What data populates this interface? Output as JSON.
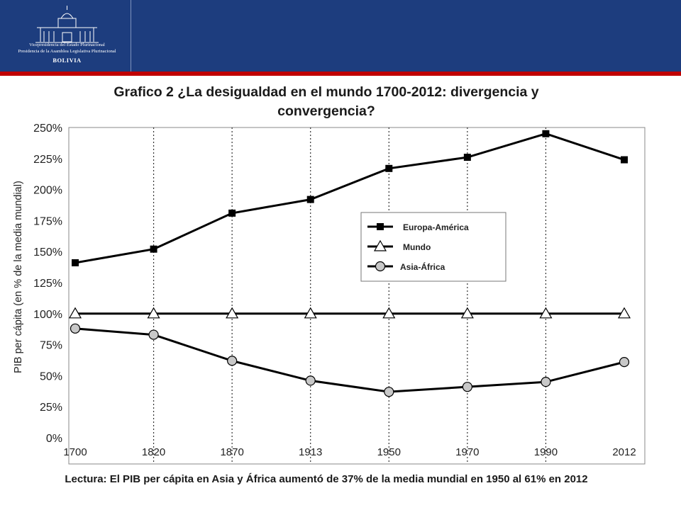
{
  "header": {
    "logo_line1": "Vicepresidencia del Estado Plurinacional",
    "logo_line2": "Presidencia de la Asamblea Legislativa Plurinacional",
    "logo_country": "BOLIVIA",
    "colors": {
      "banner": "#1d3d7e",
      "accent_line": "#c00000"
    }
  },
  "chart_data": {
    "type": "line",
    "title": "Grafico 2 ¿La desigualdad en el mundo 1700-2012: divergencia y convergencia?",
    "xlabel": "",
    "ylabel": "PIB per cápita (en % de la media mundial)",
    "categories": [
      "1700",
      "1820",
      "1870",
      "1913",
      "1950",
      "1970",
      "1990",
      "2012"
    ],
    "ylim": [
      0,
      250
    ],
    "yticks": [
      "0%",
      "25%",
      "50%",
      "75%",
      "100%",
      "125%",
      "150%",
      "175%",
      "200%",
      "225%",
      "250%"
    ],
    "grid": "vertical dotted lines at each category",
    "legend_position": "center-right",
    "series": [
      {
        "name": "Europa-América",
        "marker": "square",
        "color": "#000000",
        "values": [
          141,
          152,
          181,
          192,
          217,
          226,
          245,
          224
        ]
      },
      {
        "name": "Mundo",
        "marker": "triangle",
        "color": "#000000",
        "values": [
          100,
          100,
          100,
          100,
          100,
          100,
          100,
          100
        ]
      },
      {
        "name": "Asia-África",
        "marker": "circle",
        "color": "#000000",
        "values": [
          88,
          83,
          62,
          46,
          37,
          41,
          45,
          61
        ]
      }
    ]
  },
  "caption": "Lectura: El PIB per cápita en Asia y África aumentó de 37% de la media mundial en 1950 al 61% en 2012"
}
